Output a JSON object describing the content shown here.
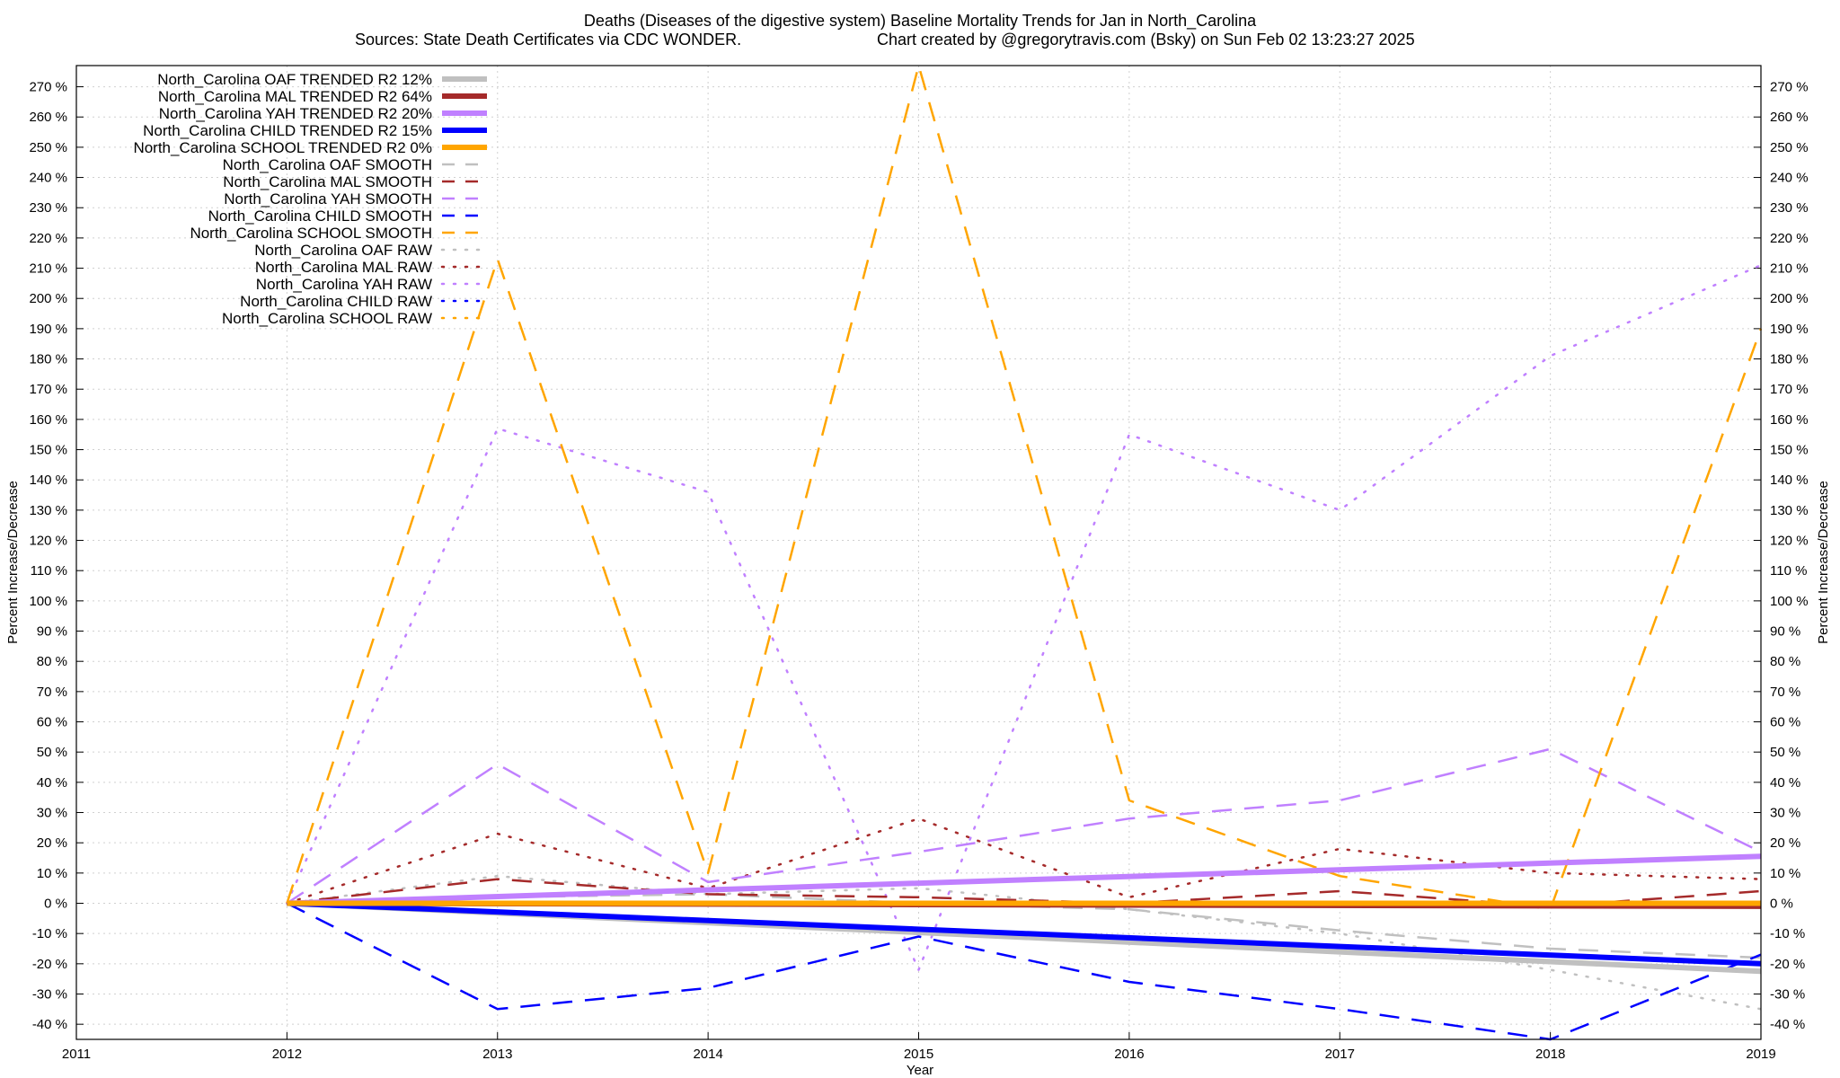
{
  "chart_data": {
    "type": "line",
    "title": "Deaths (Diseases of the digestive system)  Baseline Mortality Trends for Jan in North_Carolina",
    "subtitle_left": "Sources: State Death Certificates via CDC WONDER.",
    "subtitle_right": "Chart created by @gregorytravis.com (Bsky) on Sun Feb 02 13:23:27 2025",
    "xlabel": "Year",
    "ylabel": "Percent Increase/Decrease",
    "xlim": [
      2011,
      2019
    ],
    "ylim": [
      -45,
      277
    ],
    "x_ticks": [
      2011,
      2012,
      2013,
      2014,
      2015,
      2016,
      2017,
      2018,
      2019
    ],
    "y_ticks": [
      -40,
      -30,
      -20,
      -10,
      0,
      10,
      20,
      30,
      40,
      50,
      60,
      70,
      80,
      90,
      100,
      110,
      120,
      130,
      140,
      150,
      160,
      170,
      180,
      190,
      200,
      210,
      220,
      230,
      240,
      250,
      260,
      270
    ],
    "y_tick_suffix": " %",
    "grid": true,
    "legend_position": "top-left",
    "series": [
      {
        "name": "North_Carolina OAF TRENDED R2  12%",
        "color": "#c0c0c0",
        "style": "solid",
        "width": 6,
        "x": [
          2012,
          2019
        ],
        "y": [
          0,
          -22.5
        ]
      },
      {
        "name": "North_Carolina MAL TRENDED R2  64%",
        "color": "#a52a2a",
        "style": "solid",
        "width": 6,
        "x": [
          2012,
          2019
        ],
        "y": [
          0,
          -1
        ]
      },
      {
        "name": "North_Carolina YAH TRENDED R2  20%",
        "color": "#c080ff",
        "style": "solid",
        "width": 6,
        "x": [
          2012,
          2019
        ],
        "y": [
          0,
          15.5
        ]
      },
      {
        "name": "North_Carolina CHILD TRENDED R2  15%",
        "color": "#0000ff",
        "style": "solid",
        "width": 6,
        "x": [
          2012,
          2019
        ],
        "y": [
          0,
          -20
        ]
      },
      {
        "name": "North_Carolina SCHOOL TRENDED R2   0%",
        "color": "#ffa500",
        "style": "solid",
        "width": 6,
        "x": [
          2012,
          2019
        ],
        "y": [
          0,
          0
        ]
      },
      {
        "name": "North_Carolina OAF SMOOTH",
        "color": "#c0c0c0",
        "style": "dash",
        "width": 2.5,
        "x": [
          2012,
          2013,
          2014,
          2015,
          2016,
          2017,
          2018,
          2019
        ],
        "y": [
          0,
          2,
          3,
          0,
          -2,
          -9,
          -15,
          -18
        ]
      },
      {
        "name": "North_Carolina MAL SMOOTH",
        "color": "#a52a2a",
        "style": "dash",
        "width": 2.5,
        "x": [
          2012,
          2013,
          2014,
          2015,
          2016,
          2017,
          2018,
          2019
        ],
        "y": [
          0,
          8,
          3,
          2,
          0,
          4,
          -1,
          4
        ]
      },
      {
        "name": "North_Carolina YAH SMOOTH",
        "color": "#c080ff",
        "style": "dash",
        "width": 2.5,
        "x": [
          2012,
          2013,
          2014,
          2015,
          2016,
          2017,
          2018,
          2019
        ],
        "y": [
          0,
          46,
          7,
          17,
          28,
          34,
          51,
          17
        ]
      },
      {
        "name": "North_Carolina CHILD SMOOTH",
        "color": "#0000ff",
        "style": "dash",
        "width": 2.5,
        "x": [
          2012,
          2013,
          2014,
          2015,
          2016,
          2017,
          2018,
          2019
        ],
        "y": [
          0,
          -35,
          -28,
          -11,
          -26,
          -35,
          -45,
          -17
        ]
      },
      {
        "name": "North_Carolina SCHOOL SMOOTH",
        "color": "#ffa500",
        "style": "dash",
        "width": 2.5,
        "x": [
          2012,
          2013,
          2014,
          2015,
          2016,
          2017,
          2018,
          2019
        ],
        "y": [
          0,
          213,
          10,
          277,
          34,
          9,
          -2,
          190
        ]
      },
      {
        "name": "North_Carolina OAF RAW",
        "color": "#c0c0c0",
        "style": "dot",
        "width": 2.5,
        "x": [
          2012,
          2013,
          2014,
          2015,
          2016,
          2017,
          2018,
          2019
        ],
        "y": [
          0,
          9,
          3,
          5,
          -2,
          -10,
          -22,
          -35
        ]
      },
      {
        "name": "North_Carolina MAL RAW",
        "color": "#a52a2a",
        "style": "dot",
        "width": 2.5,
        "x": [
          2012,
          2013,
          2014,
          2015,
          2016,
          2017,
          2018,
          2019
        ],
        "y": [
          0,
          23,
          5,
          28,
          2,
          18,
          10,
          8
        ]
      },
      {
        "name": "North_Carolina YAH RAW",
        "color": "#c080ff",
        "style": "dot",
        "width": 2.5,
        "x": [
          2012,
          2013,
          2014,
          2015,
          2016,
          2017,
          2018,
          2019
        ],
        "y": [
          0,
          157,
          136,
          -22,
          155,
          130,
          181,
          211
        ]
      },
      {
        "name": "North_Carolina CHILD RAW",
        "color": "#0000ff",
        "style": "dot",
        "width": 2.5,
        "x": [],
        "y": []
      },
      {
        "name": "North_Carolina SCHOOL RAW",
        "color": "#ffa500",
        "style": "dot",
        "width": 2.5,
        "x": [],
        "y": []
      }
    ]
  }
}
